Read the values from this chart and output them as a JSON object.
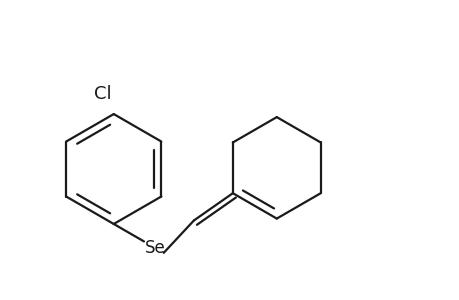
{
  "background_color": "#ffffff",
  "line_color": "#1a1a1a",
  "line_width": 1.6,
  "text_color": "#1a1a1a",
  "Se_label": "Se",
  "Cl_label": "Cl",
  "figsize": [
    4.6,
    3.0
  ],
  "dpi": 100,
  "ring_r": 0.52,
  "cyc_r": 0.48
}
